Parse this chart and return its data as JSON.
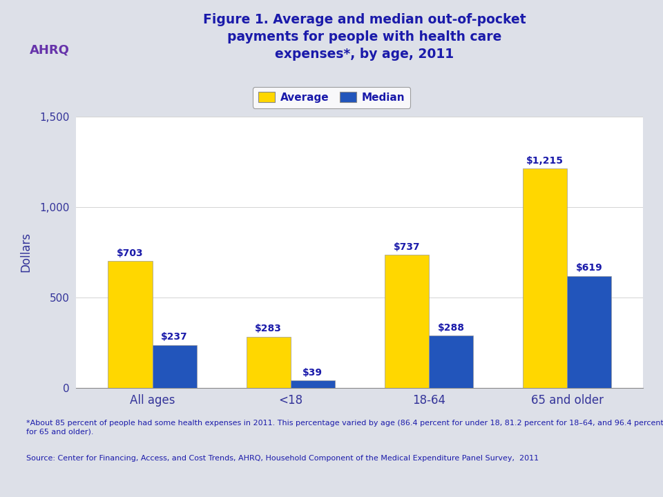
{
  "title": "Figure 1. Average and median out-of-pocket\npayments for people with health care\nexpenses*, by age, 2011",
  "categories": [
    "All ages",
    "<18",
    "18-64",
    "65 and older"
  ],
  "average_values": [
    703,
    283,
    737,
    1215
  ],
  "median_values": [
    237,
    39,
    288,
    619
  ],
  "average_labels": [
    "$703",
    "$283",
    "$737",
    "$1,215"
  ],
  "median_labels": [
    "$237",
    "$39",
    "$288",
    "$619"
  ],
  "average_color": "#FFD700",
  "median_color": "#2255BB",
  "title_color": "#1a1aaa",
  "label_color": "#1a1aaa",
  "axis_label_color": "#333399",
  "ylabel": "Dollars",
  "ylim": [
    0,
    1500
  ],
  "yticks": [
    0,
    500,
    1000,
    1500
  ],
  "background_color": "#dde0e8",
  "plot_bg_color": "#ffffff",
  "footnote1": "*About 85 percent of people had some health expenses in 2011. This percentage varied by age (86.4 percent for under 18, 81.2 percent for 18–64, and 96.4 percent\nfor 65 and older).",
  "footnote2": "Source: Center for Financing, Access, and Cost Trends, AHRQ, Household Component of the Medical Expenditure Panel Survey,  2011",
  "bar_width": 0.32,
  "separator_color": "#cc8888"
}
